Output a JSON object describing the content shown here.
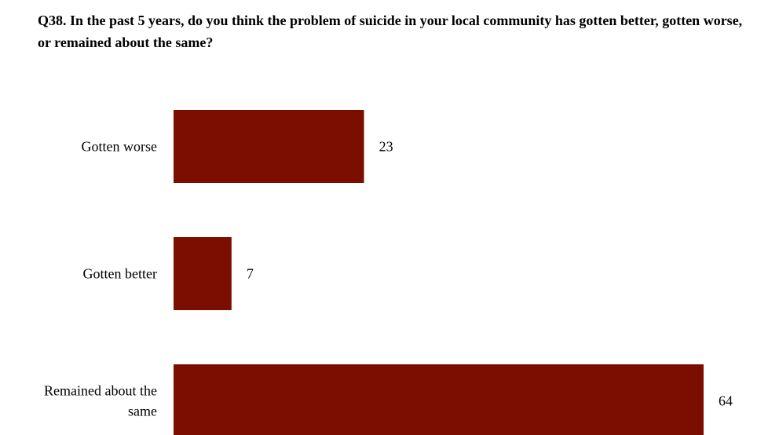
{
  "chart_data": {
    "type": "bar",
    "orientation": "horizontal",
    "title": "Q38. In the past 5 years, do you think the problem of suicide in your local community has gotten better, gotten worse, or remained about the same?",
    "categories": [
      [
        "Gotten worse"
      ],
      [
        "Gotten better"
      ],
      [
        "Remained about the",
        "same"
      ]
    ],
    "values": [
      23,
      7,
      64
    ],
    "xlim": [
      0,
      64
    ],
    "grid": false,
    "legend": "none",
    "bar_color": "#7B0E00"
  }
}
